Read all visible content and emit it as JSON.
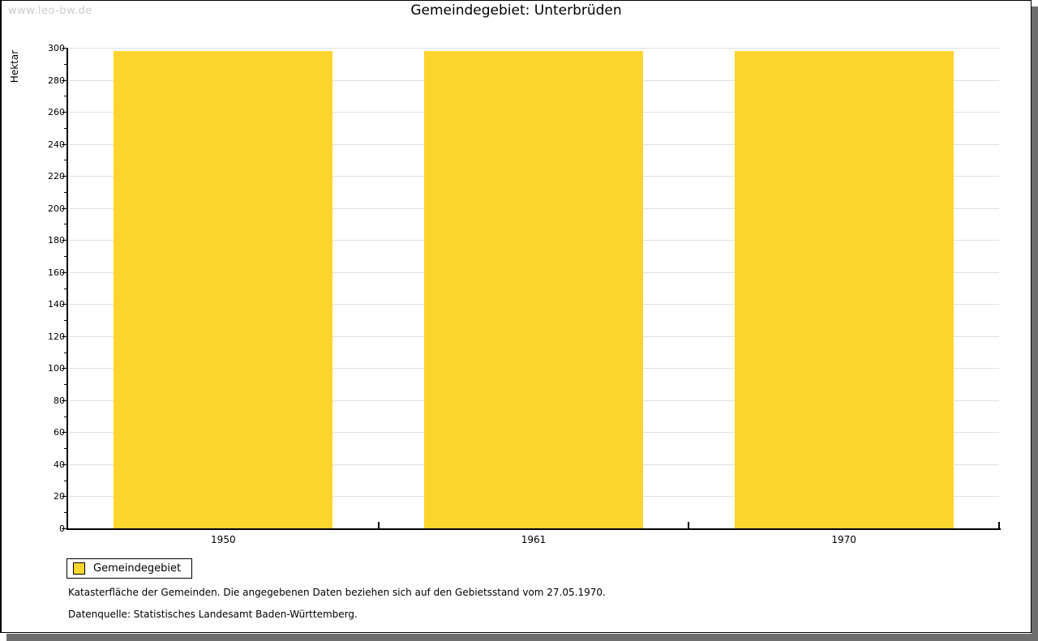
{
  "window": {
    "watermark": "www.leo-bw.de"
  },
  "title": "Gemeindegebiet: Unterbrüden",
  "chart_data": {
    "type": "bar",
    "title": "Gemeindegebiet: Unterbrüden",
    "categories": [
      "1950",
      "1961",
      "1970"
    ],
    "series": [
      {
        "name": "Gemeindegebiet",
        "values": [
          298,
          298,
          298
        ]
      }
    ],
    "xlabel": "",
    "ylabel": "Hektar",
    "ylim": [
      0,
      300
    ],
    "ytick_step": 20,
    "minor_tick_step": 10,
    "grid": true,
    "legend_position": "bottom-left",
    "bar_color": "#FDD52D"
  },
  "legend": {
    "items": [
      {
        "label": "Gemeindegebiet",
        "color": "#FDD52D"
      }
    ]
  },
  "footer": {
    "line1": "Katasterfläche der Gemeinden. Die angegebenen Daten beziehen sich auf den Gebietsstand vom 27.05.1970.",
    "line2": "Datenquelle: Statistisches Landesamt Baden-Württemberg."
  },
  "colors": {
    "bar": "#FDD52D",
    "grid": "#E0E0E0",
    "axis": "#000000",
    "watermark": "#CCCCCC",
    "shadow": "#6E6E6E"
  }
}
